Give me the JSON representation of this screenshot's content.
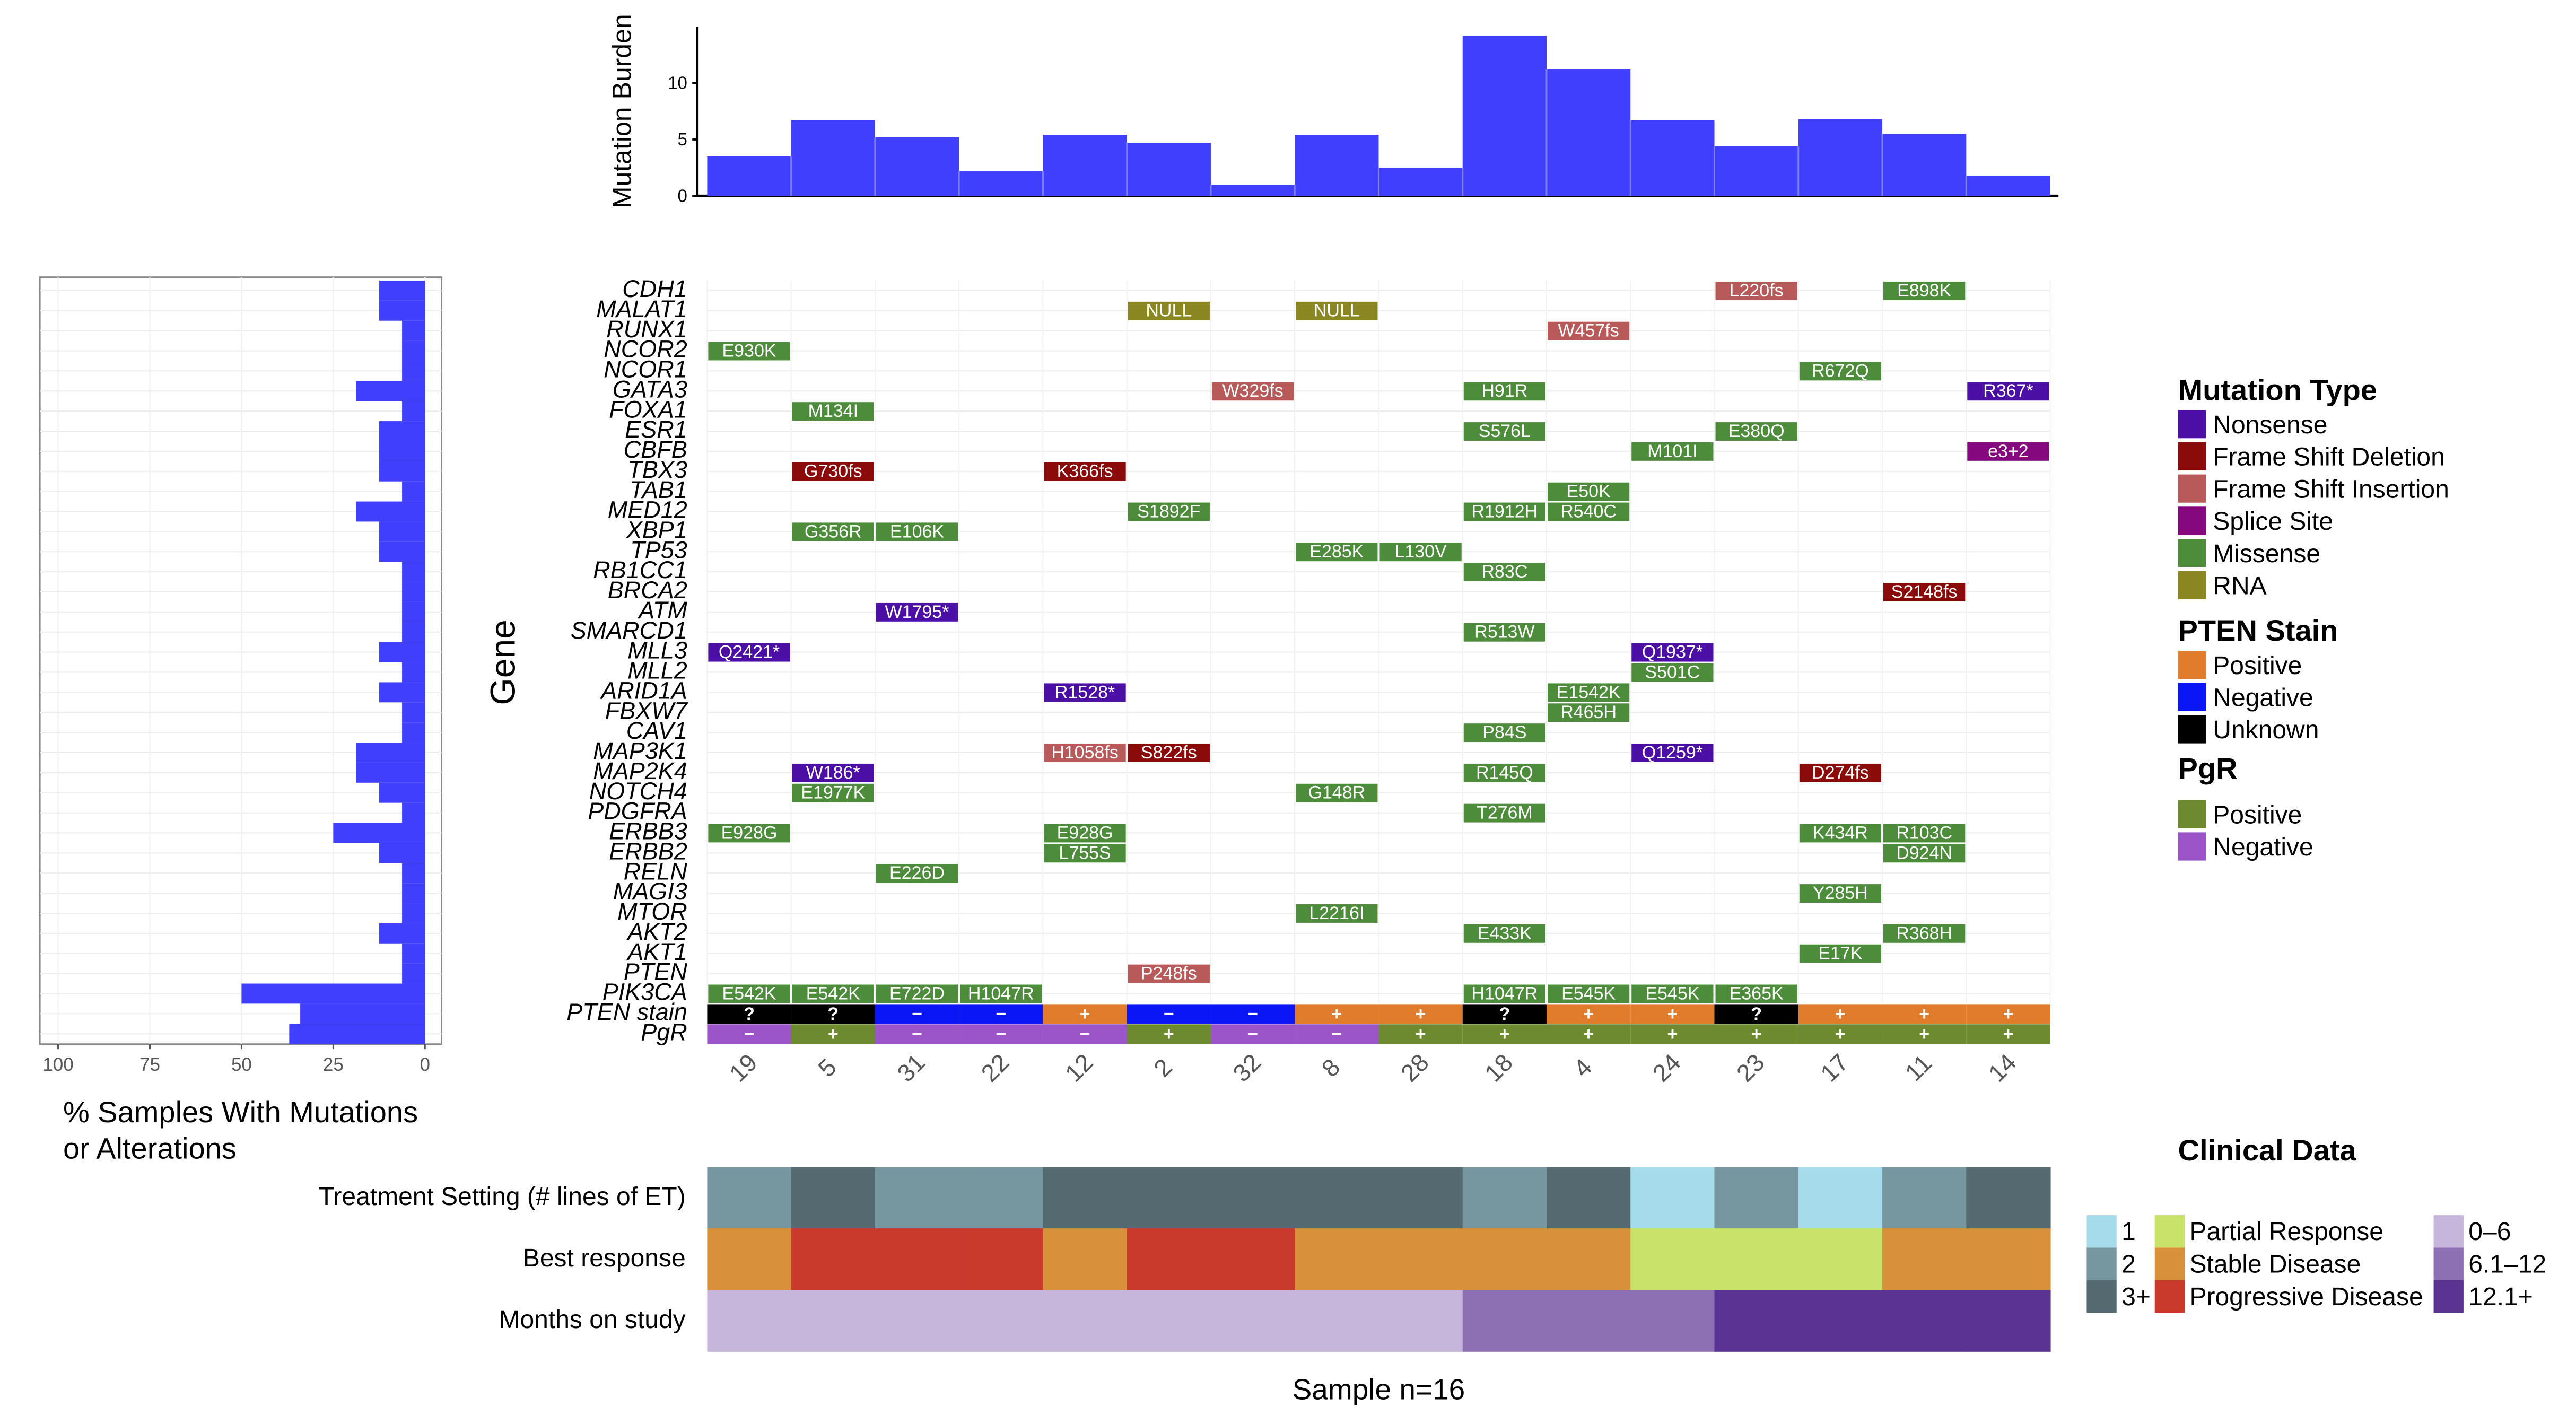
{
  "chart_data": [
    {
      "type": "bar",
      "name": "mutation-burden",
      "ylabel": "Mutation Burden",
      "ylim": [
        0,
        15
      ],
      "yticks": [
        0,
        5,
        10
      ],
      "categories": [
        "19",
        "5",
        "31",
        "22",
        "12",
        "2",
        "32",
        "8",
        "28",
        "18",
        "4",
        "24",
        "23",
        "17",
        "11",
        "14"
      ],
      "values": [
        3.5,
        6.7,
        5.2,
        2.2,
        5.4,
        4.7,
        1.0,
        5.4,
        2.5,
        14.2,
        11.2,
        6.7,
        4.4,
        6.8,
        5.5,
        1.8
      ],
      "color": "#3f3ffd"
    },
    {
      "type": "bar",
      "name": "percent-samples",
      "orientation": "horizontal",
      "xlabel": "% Samples With Mutations or Alterations",
      "xlabel_lines": [
        "% Samples With Mutations",
        "or Alterations"
      ],
      "xlim": [
        100,
        0
      ],
      "xticks": [
        100,
        75,
        50,
        25,
        0
      ],
      "categories": [
        "CDH1",
        "MALAT1",
        "RUNX1",
        "NCOR2",
        "NCOR1",
        "GATA3",
        "FOXA1",
        "ESR1",
        "CBFB",
        "TBX3",
        "TAB1",
        "MED12",
        "XBP1",
        "TP53",
        "RB1CC1",
        "BRCA2",
        "ATM",
        "SMARCD1",
        "MLL3",
        "MLL2",
        "ARID1A",
        "FBXW7",
        "CAV1",
        "MAP3K1",
        "MAP2K4",
        "NOTCH4",
        "PDGFRA",
        "ERBB3",
        "ERBB2",
        "RELN",
        "MAGI3",
        "MTOR",
        "AKT2",
        "AKT1",
        "PTEN",
        "PIK3CA",
        "PTEN stain",
        "PgR"
      ],
      "values": [
        12.5,
        12.5,
        6.25,
        6.25,
        6.25,
        18.75,
        6.25,
        12.5,
        12.5,
        12.5,
        6.25,
        18.75,
        12.5,
        12.5,
        6.25,
        6.25,
        6.25,
        6.25,
        12.5,
        6.25,
        12.5,
        6.25,
        6.25,
        18.75,
        18.75,
        12.5,
        6.25,
        25,
        12.5,
        6.25,
        6.25,
        6.25,
        12.5,
        6.25,
        6.25,
        50,
        34,
        37
      ],
      "color": "#3f3ffd"
    },
    {
      "type": "heatmap",
      "name": "oncoprint",
      "ylabel": "Gene",
      "samples": [
        "19",
        "5",
        "31",
        "22",
        "12",
        "2",
        "32",
        "8",
        "28",
        "18",
        "4",
        "24",
        "23",
        "17",
        "11",
        "14"
      ],
      "genes": [
        "CDH1",
        "MALAT1",
        "RUNX1",
        "NCOR2",
        "NCOR1",
        "GATA3",
        "FOXA1",
        "ESR1",
        "CBFB",
        "TBX3",
        "TAB1",
        "MED12",
        "XBP1",
        "TP53",
        "RB1CC1",
        "BRCA2",
        "ATM",
        "SMARCD1",
        "MLL3",
        "MLL2",
        "ARID1A",
        "FBXW7",
        "CAV1",
        "MAP3K1",
        "MAP2K4",
        "NOTCH4",
        "PDGFRA",
        "ERBB3",
        "ERBB2",
        "RELN",
        "MAGI3",
        "MTOR",
        "AKT2",
        "AKT1",
        "PTEN",
        "PIK3CA"
      ],
      "mutations": [
        {
          "gene": "CDH1",
          "sample": "23",
          "label": "L220fs",
          "type": "Frame Shift Insertion"
        },
        {
          "gene": "CDH1",
          "sample": "11",
          "label": "E898K",
          "type": "Missense"
        },
        {
          "gene": "MALAT1",
          "sample": "2",
          "label": "NULL",
          "type": "RNA"
        },
        {
          "gene": "MALAT1",
          "sample": "8",
          "label": "NULL",
          "type": "RNA"
        },
        {
          "gene": "RUNX1",
          "sample": "4",
          "label": "W457fs",
          "type": "Frame Shift Insertion"
        },
        {
          "gene": "NCOR2",
          "sample": "19",
          "label": "E930K",
          "type": "Missense"
        },
        {
          "gene": "NCOR1",
          "sample": "17",
          "label": "R672Q",
          "type": "Missense"
        },
        {
          "gene": "GATA3",
          "sample": "32",
          "label": "W329fs",
          "type": "Frame Shift Insertion"
        },
        {
          "gene": "GATA3",
          "sample": "18",
          "label": "H91R",
          "type": "Missense"
        },
        {
          "gene": "GATA3",
          "sample": "14",
          "label": "R367*",
          "type": "Nonsense"
        },
        {
          "gene": "FOXA1",
          "sample": "5",
          "label": "M134I",
          "type": "Missense"
        },
        {
          "gene": "ESR1",
          "sample": "18",
          "label": "S576L",
          "type": "Missense"
        },
        {
          "gene": "ESR1",
          "sample": "23",
          "label": "E380Q",
          "type": "Missense"
        },
        {
          "gene": "CBFB",
          "sample": "24",
          "label": "M101I",
          "type": "Missense"
        },
        {
          "gene": "CBFB",
          "sample": "14",
          "label": "e3+2",
          "type": "Splice Site"
        },
        {
          "gene": "TBX3",
          "sample": "5",
          "label": "G730fs",
          "type": "Frame Shift Deletion"
        },
        {
          "gene": "TBX3",
          "sample": "12",
          "label": "K366fs",
          "type": "Frame Shift Deletion"
        },
        {
          "gene": "TAB1",
          "sample": "4",
          "label": "E50K",
          "type": "Missense"
        },
        {
          "gene": "MED12",
          "sample": "2",
          "label": "S1892F",
          "type": "Missense"
        },
        {
          "gene": "MED12",
          "sample": "18",
          "label": "R1912H",
          "type": "Missense"
        },
        {
          "gene": "MED12",
          "sample": "4",
          "label": "R540C",
          "type": "Missense"
        },
        {
          "gene": "XBP1",
          "sample": "5",
          "label": "G356R",
          "type": "Missense"
        },
        {
          "gene": "XBP1",
          "sample": "31",
          "label": "E106K",
          "type": "Missense"
        },
        {
          "gene": "TP53",
          "sample": "8",
          "label": "E285K",
          "type": "Missense"
        },
        {
          "gene": "TP53",
          "sample": "28",
          "label": "L130V",
          "type": "Missense"
        },
        {
          "gene": "RB1CC1",
          "sample": "18",
          "label": "R83C",
          "type": "Missense"
        },
        {
          "gene": "BRCA2",
          "sample": "11",
          "label": "S2148fs",
          "type": "Frame Shift Deletion"
        },
        {
          "gene": "ATM",
          "sample": "31",
          "label": "W1795*",
          "type": "Nonsense"
        },
        {
          "gene": "SMARCD1",
          "sample": "18",
          "label": "R513W",
          "type": "Missense"
        },
        {
          "gene": "MLL3",
          "sample": "19",
          "label": "Q2421*",
          "type": "Nonsense"
        },
        {
          "gene": "MLL3",
          "sample": "24",
          "label": "Q1937*",
          "type": "Nonsense"
        },
        {
          "gene": "MLL2",
          "sample": "24",
          "label": "S501C",
          "type": "Missense"
        },
        {
          "gene": "ARID1A",
          "sample": "12",
          "label": "R1528*",
          "type": "Nonsense"
        },
        {
          "gene": "ARID1A",
          "sample": "4",
          "label": "E1542K",
          "type": "Missense"
        },
        {
          "gene": "FBXW7",
          "sample": "4",
          "label": "R465H",
          "type": "Missense"
        },
        {
          "gene": "CAV1",
          "sample": "18",
          "label": "P84S",
          "type": "Missense"
        },
        {
          "gene": "MAP3K1",
          "sample": "12",
          "label": "H1058fs",
          "type": "Frame Shift Insertion"
        },
        {
          "gene": "MAP3K1",
          "sample": "2",
          "label": "S822fs",
          "type": "Frame Shift Deletion"
        },
        {
          "gene": "MAP3K1",
          "sample": "24",
          "label": "Q1259*",
          "type": "Nonsense"
        },
        {
          "gene": "MAP2K4",
          "sample": "5",
          "label": "W186*",
          "type": "Nonsense"
        },
        {
          "gene": "MAP2K4",
          "sample": "18",
          "label": "R145Q",
          "type": "Missense"
        },
        {
          "gene": "MAP2K4",
          "sample": "17",
          "label": "D274fs",
          "type": "Frame Shift Deletion"
        },
        {
          "gene": "NOTCH4",
          "sample": "5",
          "label": "E1977K",
          "type": "Missense"
        },
        {
          "gene": "NOTCH4",
          "sample": "8",
          "label": "G148R",
          "type": "Missense"
        },
        {
          "gene": "PDGFRA",
          "sample": "18",
          "label": "T276M",
          "type": "Missense"
        },
        {
          "gene": "ERBB3",
          "sample": "19",
          "label": "E928G",
          "type": "Missense"
        },
        {
          "gene": "ERBB3",
          "sample": "12",
          "label": "E928G",
          "type": "Missense"
        },
        {
          "gene": "ERBB3",
          "sample": "17",
          "label": "K434R",
          "type": "Missense"
        },
        {
          "gene": "ERBB3",
          "sample": "11",
          "label": "R103C",
          "type": "Missense"
        },
        {
          "gene": "ERBB2",
          "sample": "12",
          "label": "L755S",
          "type": "Missense"
        },
        {
          "gene": "ERBB2",
          "sample": "11",
          "label": "D924N",
          "type": "Missense"
        },
        {
          "gene": "RELN",
          "sample": "31",
          "label": "E226D",
          "type": "Missense"
        },
        {
          "gene": "MAGI3",
          "sample": "17",
          "label": "Y285H",
          "type": "Missense"
        },
        {
          "gene": "MTOR",
          "sample": "8",
          "label": "L2216I",
          "type": "Missense"
        },
        {
          "gene": "AKT2",
          "sample": "18",
          "label": "E433K",
          "type": "Missense"
        },
        {
          "gene": "AKT2",
          "sample": "11",
          "label": "R368H",
          "type": "Missense"
        },
        {
          "gene": "AKT1",
          "sample": "17",
          "label": "E17K",
          "type": "Missense"
        },
        {
          "gene": "PTEN",
          "sample": "2",
          "label": "P248fs",
          "type": "Frame Shift Insertion"
        },
        {
          "gene": "PIK3CA",
          "sample": "19",
          "label": "E542K",
          "type": "Missense"
        },
        {
          "gene": "PIK3CA",
          "sample": "5",
          "label": "E542K",
          "type": "Missense"
        },
        {
          "gene": "PIK3CA",
          "sample": "31",
          "label": "E722D",
          "type": "Missense"
        },
        {
          "gene": "PIK3CA",
          "sample": "22",
          "label": "H1047R",
          "type": "Missense"
        },
        {
          "gene": "PIK3CA",
          "sample": "18",
          "label": "H1047R",
          "type": "Missense"
        },
        {
          "gene": "PIK3CA",
          "sample": "4",
          "label": "E545K",
          "type": "Missense"
        },
        {
          "gene": "PIK3CA",
          "sample": "24",
          "label": "E545K",
          "type": "Missense"
        },
        {
          "gene": "PIK3CA",
          "sample": "23",
          "label": "E365K",
          "type": "Missense"
        }
      ],
      "pten_stain_label": "PTEN stain",
      "pten_stain": [
        "?",
        "?",
        "−",
        "−",
        "+",
        "−",
        "−",
        "+",
        "+",
        "?",
        "+",
        "+",
        "?",
        "+",
        "+",
        "+"
      ],
      "pgr_label": "PgR",
      "pgr": [
        "−",
        "+",
        "−",
        "−",
        "−",
        "+",
        "−",
        "−",
        "+",
        "+",
        "+",
        "+",
        "+",
        "+",
        "+",
        "+"
      ]
    },
    {
      "type": "heatmap",
      "name": "clinical-data",
      "title": "Clinical Data",
      "xlabel": "Sample n=16",
      "rows": [
        "Treatment Setting (# lines of ET)",
        "Best response",
        "Months on study"
      ],
      "treatment_setting": [
        "2",
        "3+",
        "2",
        "2",
        "3+",
        "3+",
        "3+",
        "3+",
        "3+",
        "2",
        "3+",
        "1",
        "2",
        "1",
        "2",
        "3+"
      ],
      "best_response": [
        "Stable Disease",
        "Progressive Disease",
        "Progressive Disease",
        "Progressive Disease",
        "Stable Disease",
        "Progressive Disease",
        "Progressive Disease",
        "Stable Disease",
        "Stable Disease",
        "Stable Disease",
        "Stable Disease",
        "Partial Response",
        "Partial Response",
        "Partial Response",
        "Stable Disease",
        "Stable Disease"
      ],
      "months_on_study": [
        "0–6",
        "0–6",
        "0–6",
        "0–6",
        "0–6",
        "0–6",
        "0–6",
        "0–6",
        "0–6",
        "6.1–12",
        "6.1–12",
        "6.1–12",
        "12.1+",
        "12.1+",
        "12.1+",
        "12.1+"
      ]
    }
  ],
  "legend": {
    "mutation_type": {
      "title": "Mutation Type",
      "items": [
        {
          "label": "Nonsense",
          "color": "#4b0fa6"
        },
        {
          "label": "Frame Shift Deletion",
          "color": "#8b0b0b"
        },
        {
          "label": "Frame Shift Insertion",
          "color": "#b85a5a"
        },
        {
          "label": "Splice Site",
          "color": "#85087e"
        },
        {
          "label": "Missense",
          "color": "#4c8c3a"
        },
        {
          "label": "RNA",
          "color": "#8a8622"
        }
      ]
    },
    "pten_stain": {
      "title": "PTEN Stain",
      "items": [
        {
          "label": "Positive",
          "color": "#e17c2c"
        },
        {
          "label": "Negative",
          "color": "#0a16f5"
        },
        {
          "label": "Unknown",
          "color": "#000000"
        }
      ]
    },
    "pgr": {
      "title": "PgR",
      "items": [
        {
          "label": "Positive",
          "color": "#6e8a2e"
        },
        {
          "label": "Negative",
          "color": "#9c55c8"
        }
      ]
    },
    "clinical": {
      "treatment_items": [
        {
          "label": "1",
          "color": "#a6dbec"
        },
        {
          "label": "2",
          "color": "#76979f"
        },
        {
          "label": "3+",
          "color": "#546a70"
        }
      ],
      "response_items": [
        {
          "label": "Partial Response",
          "color": "#c8e26a"
        },
        {
          "label": "Stable Disease",
          "color": "#d8903a"
        },
        {
          "label": "Progressive Disease",
          "color": "#c9392c"
        }
      ],
      "months_items": [
        {
          "label": "0–6",
          "color": "#c7b6db"
        },
        {
          "label": "6.1–12",
          "color": "#8d70b4"
        },
        {
          "label": "12.1+",
          "color": "#5a3393"
        }
      ]
    }
  }
}
